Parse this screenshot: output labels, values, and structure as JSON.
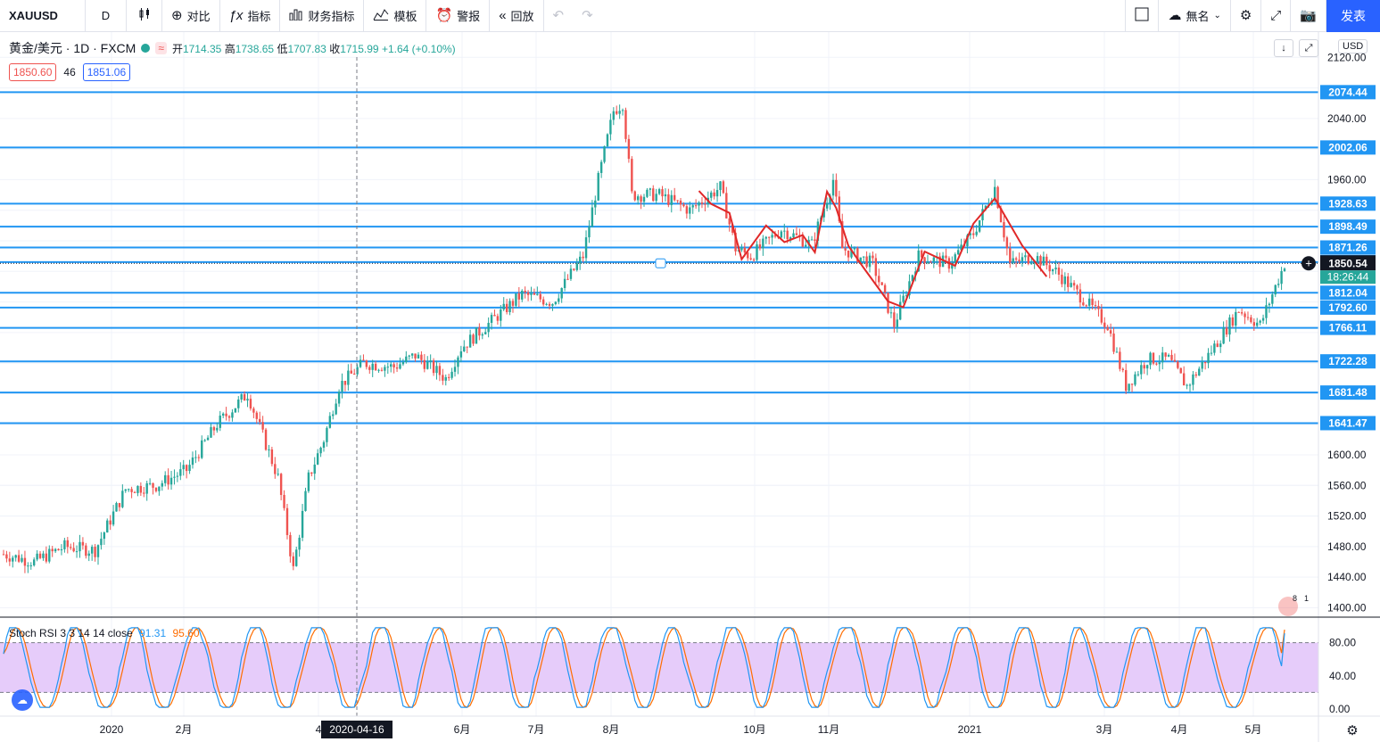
{
  "toolbar": {
    "symbol": "XAUUSD",
    "interval": "D",
    "compare_label": "对比",
    "indicators_label": "指标",
    "financials_label": "财务指标",
    "templates_label": "模板",
    "alert_label": "警报",
    "replay_label": "回放",
    "layout_name": "無名",
    "publish_label": "发表"
  },
  "legend": {
    "name": "黄金/美元 · 1D · FXCM",
    "wave_glyph": "≈",
    "open_label": "开",
    "open": "1714.35",
    "high_label": "高",
    "high": "1738.65",
    "low_label": "低",
    "low": "1707.83",
    "close_label": "收",
    "close": "1715.99",
    "change": "+1.64 (+0.10%)"
  },
  "bidask": {
    "bid": "1850.60",
    "spread": "46",
    "ask": "1851.06"
  },
  "currency": "USD",
  "stoch_legend": {
    "name": "Stoch RSI 3 3 14 14 close",
    "k": "91.31",
    "d": "95.60"
  },
  "crosshair_date": "2020-04-16",
  "countdown": "18:26:44",
  "events_badge": {
    "a": "8",
    "b": "1"
  },
  "colors": {
    "up": "#26a69a",
    "down": "#ef5350",
    "hline": "#2196f3",
    "stoch_k": "#2196f3",
    "stoch_d": "#ff6d00",
    "stoch_band": "#e6ccfa",
    "pattern": "#e02828"
  },
  "chart_data": {
    "type": "candlestick",
    "symbol": "XAUUSD",
    "interval": "1D",
    "price_axis": {
      "ticks": [
        2120,
        2040,
        1960,
        1600,
        1560,
        1520,
        1480,
        1440,
        1400
      ],
      "tick_labels": [
        "2120.00",
        "2040.00",
        "1960.00",
        "1600.00",
        "1560.00",
        "1520.00",
        "1480.00",
        "1440.00",
        "1400.00"
      ],
      "range": [
        1390,
        2125
      ]
    },
    "time_axis": [
      "2020",
      "2月",
      "4",
      "6月",
      "7月",
      "8月",
      "10月",
      "11月",
      "2021",
      "3月",
      "4月",
      "5月"
    ],
    "horizontal_levels": [
      2074.44,
      2002.06,
      1928.63,
      1898.49,
      1871.26,
      1852.12,
      1812.04,
      1792.6,
      1766.11,
      1722.28,
      1681.48,
      1641.47
    ],
    "last_price": 1850.54,
    "price_path": [
      [
        0,
        1470
      ],
      [
        10,
        1460
      ],
      [
        20,
        1480
      ],
      [
        30,
        1475
      ],
      [
        40,
        1555
      ],
      [
        50,
        1560
      ],
      [
        60,
        1580
      ],
      [
        70,
        1640
      ],
      [
        80,
        1680
      ],
      [
        90,
        1570
      ],
      [
        95,
        1450
      ],
      [
        100,
        1570
      ],
      [
        105,
        1620
      ],
      [
        110,
        1690
      ],
      [
        118,
        1720
      ],
      [
        128,
        1715
      ],
      [
        135,
        1730
      ],
      [
        145,
        1700
      ],
      [
        150,
        1740
      ],
      [
        160,
        1775
      ],
      [
        170,
        1810
      ],
      [
        180,
        1800
      ],
      [
        190,
        1860
      ],
      [
        195,
        1960
      ],
      [
        200,
        2050
      ],
      [
        203,
        2060
      ],
      [
        206,
        1940
      ],
      [
        215,
        1940
      ],
      [
        225,
        1920
      ],
      [
        235,
        1950
      ],
      [
        240,
        1870
      ],
      [
        245,
        1860
      ],
      [
        255,
        1895
      ],
      [
        265,
        1875
      ],
      [
        272,
        1960
      ],
      [
        275,
        1870
      ],
      [
        285,
        1850
      ],
      [
        292,
        1770
      ],
      [
        300,
        1860
      ],
      [
        310,
        1850
      ],
      [
        318,
        1890
      ],
      [
        325,
        1950
      ],
      [
        330,
        1850
      ],
      [
        338,
        1860
      ],
      [
        345,
        1840
      ],
      [
        355,
        1800
      ],
      [
        362,
        1770
      ],
      [
        368,
        1690
      ],
      [
        375,
        1725
      ],
      [
        382,
        1725
      ],
      [
        388,
        1690
      ],
      [
        395,
        1730
      ],
      [
        405,
        1790
      ],
      [
        412,
        1770
      ],
      [
        420,
        1850
      ]
    ],
    "stoch_rsi": {
      "k_last": 91.31,
      "d_last": 95.6,
      "bands": [
        80,
        20
      ],
      "axis_ticks": [
        80,
        40,
        0
      ],
      "axis_labels": [
        "80.00",
        "40.00",
        "0.00"
      ]
    }
  }
}
